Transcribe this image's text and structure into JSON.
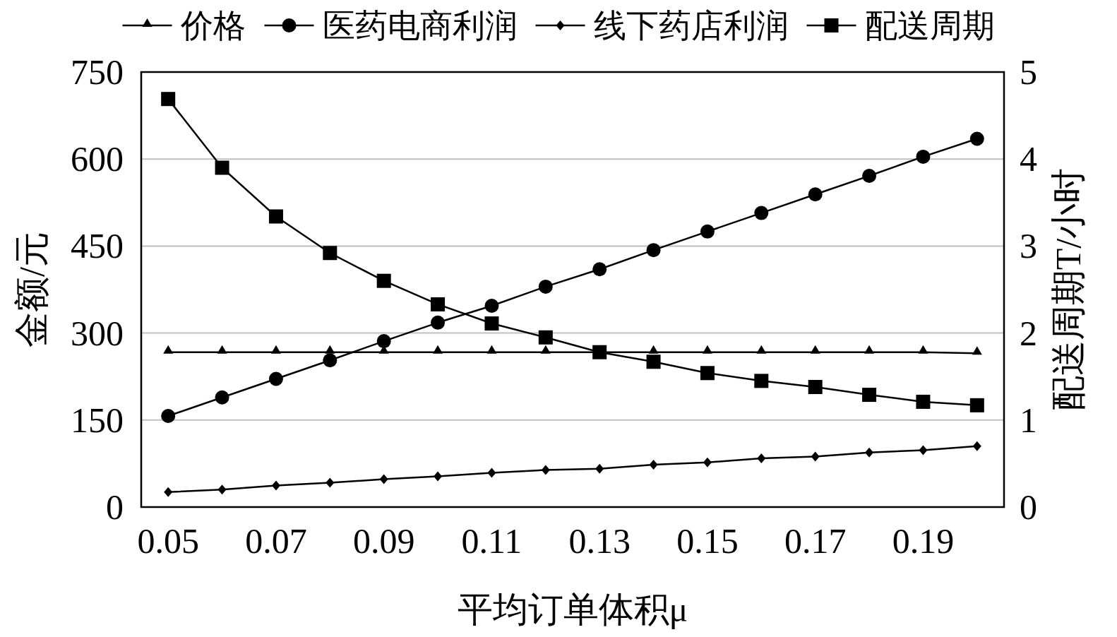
{
  "chart_data": {
    "type": "line",
    "categories": [
      "0.05",
      null,
      "0.07",
      null,
      "0.09",
      null,
      "0.11",
      null,
      "0.13",
      null,
      "0.15",
      null,
      "0.17",
      null,
      "0.19",
      null
    ],
    "series": [
      {
        "name": "价格",
        "color": "#000000",
        "marker": "triangle",
        "values": [
          267,
          267,
          267,
          267,
          267,
          267,
          267,
          267,
          267,
          267,
          267,
          267,
          267,
          267,
          267,
          265
        ]
      },
      {
        "name": "医药电商利润",
        "color": "#000000",
        "marker": "circle",
        "values": [
          157,
          189,
          221,
          253,
          286,
          318,
          347,
          380,
          410,
          443,
          475,
          507,
          539,
          571,
          604,
          635
        ]
      },
      {
        "name": "线下药店利润",
        "color": "#000000",
        "marker": "diamond",
        "values": [
          26,
          30,
          37,
          42,
          48,
          53,
          59,
          64,
          66,
          73,
          77,
          84,
          87,
          94,
          98,
          105
        ]
      },
      {
        "name": "配送周期",
        "color": "#000000",
        "marker": "square",
        "axis": "y2",
        "values": [
          4.69,
          3.9,
          3.34,
          2.92,
          2.6,
          2.33,
          2.11,
          1.95,
          1.78,
          1.67,
          1.54,
          1.45,
          1.38,
          1.29,
          1.21,
          1.17
        ]
      }
    ],
    "xlabel": "平均订单体积μ",
    "ylabel": "金额/元",
    "y2label": "配送周期T/小时",
    "ylim": [
      0,
      750
    ],
    "yticks": [
      0,
      150,
      300,
      450,
      600,
      750
    ],
    "y2lim": [
      0,
      5
    ],
    "y2ticks": [
      0,
      1,
      2,
      3,
      4,
      5
    ],
    "grid": "y",
    "legend": "top"
  }
}
